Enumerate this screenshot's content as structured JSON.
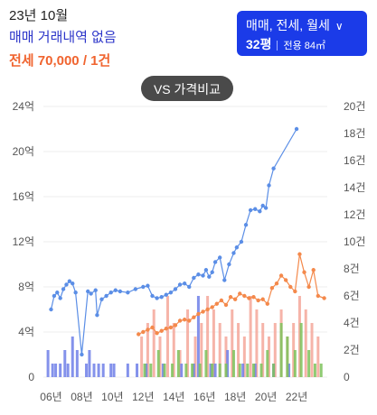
{
  "header": {
    "month": "23년 10월",
    "trade_status": "매매 거래내역 없음",
    "rent_summary": "전세 70,000 / 1건"
  },
  "selector": {
    "types": "매매, 전세, 월세",
    "pyeong": "32평",
    "area_label": "전용 84㎡"
  },
  "compare_button": "VS 가격비교",
  "colors": {
    "trade": "#5b8ee6",
    "rent": "#f4894b",
    "bar_trade": "#6e7fe8",
    "bar_rent": "#f4a79a",
    "bar_monthly": "#7cc25a",
    "grid": "#eeeeee"
  },
  "chart_data": {
    "type": "line",
    "x_range": [
      2005.5,
      2024.0
    ],
    "left_axis": {
      "ticks": [
        0,
        4,
        8,
        12,
        16,
        20,
        24
      ],
      "tick_labels": [
        "0",
        "4억",
        "8억",
        "12억",
        "16억",
        "20억",
        "24억"
      ],
      "range": [
        0,
        24
      ]
    },
    "right_axis": {
      "ticks": [
        0,
        2,
        4,
        6,
        8,
        10,
        12,
        14,
        16,
        18,
        20
      ],
      "tick_labels": [
        "0",
        "2건",
        "4건",
        "6건",
        "8건",
        "10건",
        "12건",
        "14건",
        "16건",
        "18건",
        "20건"
      ],
      "range": [
        0,
        20
      ]
    },
    "x_ticks": [
      2006,
      2008,
      2010,
      2012,
      2014,
      2016,
      2018,
      2020,
      2022
    ],
    "x_tick_labels": [
      "06년",
      "08년",
      "10년",
      "12년",
      "14년",
      "16년",
      "18년",
      "20년",
      "22년"
    ],
    "grid": true,
    "series": [
      {
        "key": "trade",
        "x": [
          2006.0,
          2006.2,
          2006.4,
          2006.6,
          2006.8,
          2007.0,
          2007.2,
          2007.4,
          2007.6,
          2008.0,
          2008.4,
          2008.6,
          2008.9,
          2009.0,
          2009.3,
          2009.6,
          2009.9,
          2010.2,
          2010.5,
          2011.0,
          2011.5,
          2012.0,
          2012.3,
          2012.6,
          2012.9,
          2013.2,
          2013.5,
          2013.8,
          2014.1,
          2014.4,
          2014.7,
          2015.0,
          2015.3,
          2015.6,
          2015.9,
          2016.1,
          2016.3,
          2016.5,
          2016.7,
          2017.0,
          2017.3,
          2017.6,
          2017.9,
          2018.1,
          2018.4,
          2018.7,
          2019.0,
          2019.3,
          2019.6,
          2019.8,
          2020.0,
          2020.2,
          2020.5,
          2022.0
        ],
        "values": [
          6.0,
          7.2,
          7.5,
          7.0,
          7.8,
          8.2,
          8.5,
          8.3,
          7.5,
          2.0,
          7.6,
          7.4,
          7.7,
          5.5,
          6.9,
          7.2,
          7.5,
          7.7,
          7.6,
          7.5,
          7.8,
          8.0,
          8.1,
          7.2,
          7.0,
          7.1,
          7.3,
          7.5,
          7.8,
          8.2,
          8.3,
          8.0,
          8.8,
          9.1,
          9.0,
          9.5,
          8.9,
          9.3,
          10.2,
          10.6,
          8.6,
          10.0,
          11.0,
          11.5,
          12.0,
          13.5,
          14.8,
          14.9,
          14.7,
          15.2,
          15.0,
          17.0,
          18.5,
          22.0
        ]
      },
      {
        "key": "rent",
        "x": [
          2011.7,
          2012.0,
          2012.3,
          2012.6,
          2012.9,
          2013.2,
          2013.5,
          2013.8,
          2014.1,
          2014.4,
          2014.7,
          2015.0,
          2015.3,
          2015.6,
          2015.9,
          2016.2,
          2016.5,
          2016.8,
          2017.1,
          2017.4,
          2017.7,
          2018.0,
          2018.3,
          2018.6,
          2018.9,
          2019.2,
          2019.5,
          2019.8,
          2020.1,
          2020.4,
          2020.7,
          2021.0,
          2021.3,
          2021.6,
          2021.9,
          2022.2,
          2022.5,
          2022.8,
          2023.1,
          2023.4,
          2023.8
        ],
        "values": [
          3.8,
          4.0,
          4.2,
          4.4,
          3.9,
          4.1,
          4.3,
          4.4,
          4.6,
          5.0,
          5.1,
          5.0,
          5.3,
          5.6,
          5.8,
          6.0,
          6.2,
          6.5,
          6.8,
          6.4,
          7.1,
          6.9,
          7.4,
          7.2,
          7.0,
          7.1,
          6.8,
          6.9,
          6.5,
          7.9,
          8.3,
          9.0,
          8.6,
          8.0,
          7.6,
          10.9,
          9.3,
          8.0,
          9.5,
          7.2,
          7.0
        ]
      }
    ],
    "bars": [
      {
        "key": "trade",
        "x": [
          2005.8,
          2006.1,
          2006.3,
          2006.6,
          2006.9,
          2007.1,
          2007.4,
          2007.7,
          2008.3,
          2008.5,
          2008.8,
          2009.1,
          2009.4,
          2009.9,
          2010.1,
          2011.0,
          2011.6,
          2012.2,
          2013.3,
          2014.5,
          2015.3,
          2015.6,
          2016.4,
          2016.7,
          2017.5,
          2018.5,
          2019.3,
          2020.5,
          2021.5
        ],
        "values": [
          2,
          1,
          1,
          1,
          2,
          1,
          3,
          2,
          1,
          2,
          1,
          1,
          1,
          1,
          1,
          1,
          1,
          1,
          1,
          1,
          1,
          6,
          1,
          1,
          2,
          1,
          1,
          1,
          1
        ]
      },
      {
        "key": "rent",
        "x": [
          2011.9,
          2012.3,
          2012.7,
          2013.1,
          2013.6,
          2014.0,
          2014.4,
          2014.9,
          2015.4,
          2015.8,
          2016.2,
          2016.6,
          2017.0,
          2017.4,
          2017.8,
          2018.2,
          2018.6,
          2019.0,
          2019.4,
          2019.8,
          2020.2,
          2020.6,
          2021.0,
          2021.4,
          2021.8,
          2022.2,
          2022.6,
          2023.0,
          2023.4
        ],
        "values": [
          3,
          4,
          5,
          3,
          6,
          4,
          2,
          5,
          3,
          4,
          6,
          5,
          4,
          3,
          5,
          4,
          3,
          6,
          5,
          4,
          3,
          4,
          5,
          3,
          4,
          6,
          5,
          4,
          3
        ]
      },
      {
        "key": "monthly",
        "x": [
          2012.1,
          2012.5,
          2013.0,
          2013.4,
          2013.9,
          2014.3,
          2014.8,
          2015.2,
          2015.7,
          2016.1,
          2016.5,
          2017.0,
          2017.4,
          2017.9,
          2018.3,
          2018.8,
          2019.2,
          2019.7,
          2020.1,
          2020.5,
          2021.0,
          2021.4,
          2021.9,
          2022.3,
          2022.8,
          2023.2,
          2023.6
        ],
        "values": [
          1,
          1,
          2,
          1,
          1,
          2,
          1,
          1,
          1,
          2,
          1,
          1,
          1,
          2,
          1,
          1,
          1,
          1,
          2,
          1,
          4,
          3,
          2,
          4,
          2,
          1,
          1
        ]
      }
    ]
  }
}
